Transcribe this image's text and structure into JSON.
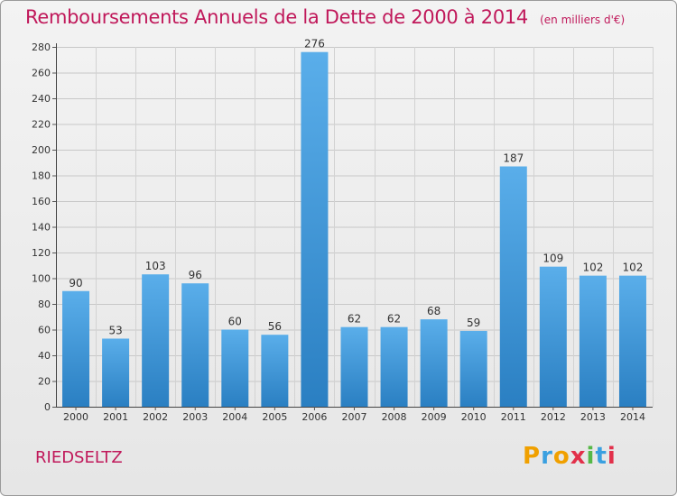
{
  "header": {
    "title": "Remboursements Annuels de la Dette de 2000 à 2014",
    "subtitle": "(en milliers d'€)"
  },
  "footer": {
    "commune": "RIEDSELTZ",
    "logo_text": "Proxiti"
  },
  "colors": {
    "accent": "#c0185a",
    "bar_light": "#5aaeea",
    "bar_dark": "#2a7fc2"
  },
  "chart_data": {
    "type": "bar",
    "title": "Remboursements Annuels de la Dette de 2000 à 2014",
    "subtitle": "(en milliers d'€)",
    "xlabel": "",
    "ylabel": "",
    "categories": [
      "2000",
      "2001",
      "2002",
      "2003",
      "2004",
      "2005",
      "2006",
      "2007",
      "2008",
      "2009",
      "2010",
      "2011",
      "2012",
      "2013",
      "2014"
    ],
    "values": [
      90,
      53,
      103,
      96,
      60,
      56,
      276,
      62,
      62,
      68,
      59,
      187,
      109,
      102,
      102
    ],
    "ylim": [
      0,
      280
    ],
    "yticks": [
      0,
      20,
      40,
      60,
      80,
      100,
      120,
      140,
      160,
      180,
      200,
      220,
      240,
      260,
      280
    ],
    "grid": true,
    "legend": "none"
  }
}
